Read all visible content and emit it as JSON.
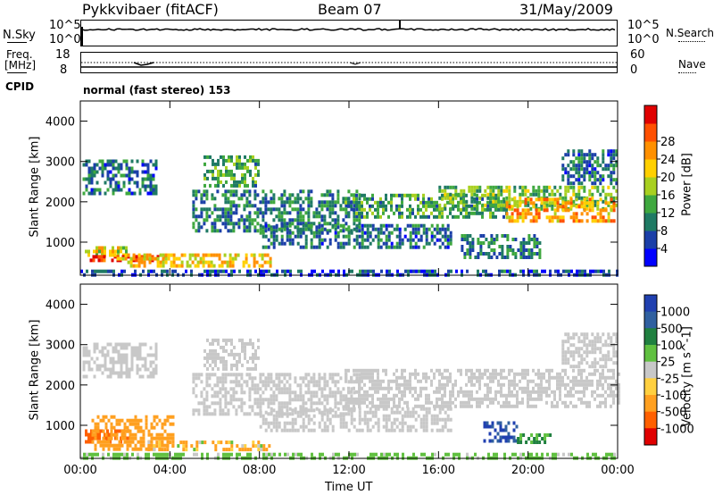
{
  "header": {
    "station": "Pykkvibaer (fitACF)",
    "beam": "Beam 07",
    "date": "31/May/2009"
  },
  "noise_panel": {
    "label": "N.Sky",
    "tick_top": "10^5",
    "tick_bottom": "10^0",
    "right_label": "N.Search",
    "right_tick_top": "10^5",
    "right_tick_bottom": "10^0"
  },
  "freq_panel": {
    "label_line1": "Freq.",
    "label_line2": "[MHz]",
    "tick_top": "18",
    "tick_bottom": "8",
    "right_label": "Nave",
    "right_tick_top": "60",
    "right_tick_bottom": "0"
  },
  "cpid": {
    "label": "CPID",
    "mode": "normal (fast stereo) 153"
  },
  "chart_data": [
    {
      "type": "heatmap",
      "name": "power",
      "xlabel": "Time UT",
      "ylabel": "Slant Range [km]",
      "xlim": [
        0,
        24
      ],
      "ylim": [
        180,
        4500
      ],
      "yticks": [
        "1000",
        "2000",
        "3000",
        "4000"
      ],
      "xticks": [
        "00:00",
        "04:00",
        "08:00",
        "12:00",
        "16:00",
        "20:00",
        "00:00"
      ],
      "colorbar": {
        "label": "Power [dB]",
        "ticks": [
          "4",
          "8",
          "12",
          "16",
          "20",
          "24",
          "28"
        ],
        "colors": [
          "#0000ff",
          "#1b3fa8",
          "#1f7a64",
          "#3fa83f",
          "#a8d020",
          "#ffd000",
          "#ff9000",
          "#ff5000",
          "#e00000"
        ]
      },
      "echo_bands": [
        {
          "t0": 0.1,
          "t1": 3.4,
          "r0": 2250,
          "r1": 3050,
          "level": 8
        },
        {
          "t0": 0.2,
          "t1": 2.0,
          "r0": 700,
          "r1": 900,
          "level": 18
        },
        {
          "t0": 0.3,
          "t1": 4.0,
          "r0": 520,
          "r1": 680,
          "level": 27
        },
        {
          "t0": 1.5,
          "t1": 8.5,
          "r0": 420,
          "r1": 720,
          "level": 20
        },
        {
          "t0": 5.5,
          "t1": 8.0,
          "r0": 2400,
          "r1": 3150,
          "level": 12
        },
        {
          "t0": 5.0,
          "t1": 12.5,
          "r0": 1300,
          "r1": 2300,
          "level": 9
        },
        {
          "t0": 8.0,
          "t1": 16.5,
          "r0": 900,
          "r1": 1450,
          "level": 8
        },
        {
          "t0": 11.8,
          "t1": 19.0,
          "r0": 1600,
          "r1": 2200,
          "level": 11
        },
        {
          "t0": 16.0,
          "t1": 24.0,
          "r0": 1800,
          "r1": 2400,
          "level": 14
        },
        {
          "t0": 19.0,
          "t1": 23.8,
          "r0": 1500,
          "r1": 2100,
          "level": 22
        },
        {
          "t0": 17.0,
          "t1": 20.5,
          "r0": 600,
          "r1": 1200,
          "level": 9
        },
        {
          "t0": 21.5,
          "t1": 24.0,
          "r0": 2500,
          "r1": 3300,
          "level": 8
        },
        {
          "t0": 0.0,
          "t1": 24.0,
          "r0": 180,
          "r1": 320,
          "level": 6
        }
      ]
    },
    {
      "type": "heatmap",
      "name": "velocity",
      "xlabel": "Time UT",
      "ylabel": "Slant Range [km]",
      "xlim": [
        0,
        24
      ],
      "ylim": [
        180,
        4500
      ],
      "yticks": [
        "1000",
        "2000",
        "3000",
        "4000"
      ],
      "xticks": [
        "00:00",
        "04:00",
        "08:00",
        "12:00",
        "16:00",
        "20:00",
        "00:00"
      ],
      "colorbar": {
        "label": "Velocity [m s^-1]",
        "ticks": [
          "1000",
          "500",
          "100",
          "25",
          "-25",
          "-100",
          "-500",
          "-1000"
        ],
        "colors": [
          "#2040b0",
          "#3060a0",
          "#208040",
          "#60c040",
          "#c8c8c8",
          "#ffd040",
          "#ffa020",
          "#ff6000",
          "#e00000"
        ]
      },
      "echo_bands": [
        {
          "t0": 0.1,
          "t1": 3.4,
          "r0": 2250,
          "r1": 3050,
          "vel": 0
        },
        {
          "t0": 0.2,
          "t1": 2.2,
          "r0": 620,
          "r1": 900,
          "vel": -700
        },
        {
          "t0": 0.5,
          "t1": 4.2,
          "r0": 420,
          "r1": 1250,
          "vel": -300
        },
        {
          "t0": 3.0,
          "t1": 8.5,
          "r0": 380,
          "r1": 620,
          "vel": -150
        },
        {
          "t0": 5.5,
          "t1": 8.0,
          "r0": 2400,
          "r1": 3150,
          "vel": 0
        },
        {
          "t0": 5.0,
          "t1": 12.5,
          "r0": 1300,
          "r1": 2300,
          "vel": 0
        },
        {
          "t0": 8.0,
          "t1": 16.5,
          "r0": 900,
          "r1": 1450,
          "vel": 0
        },
        {
          "t0": 11.8,
          "t1": 24.0,
          "r0": 1500,
          "r1": 2400,
          "vel": 0
        },
        {
          "t0": 18.0,
          "t1": 19.5,
          "r0": 600,
          "r1": 1100,
          "vel": 800
        },
        {
          "t0": 19.5,
          "t1": 21.0,
          "r0": 550,
          "r1": 800,
          "vel": 60
        },
        {
          "t0": 21.5,
          "t1": 24.0,
          "r0": 2500,
          "r1": 3300,
          "vel": 0
        },
        {
          "t0": 0.0,
          "t1": 24.0,
          "r0": 180,
          "r1": 320,
          "vel": 40
        }
      ]
    }
  ]
}
